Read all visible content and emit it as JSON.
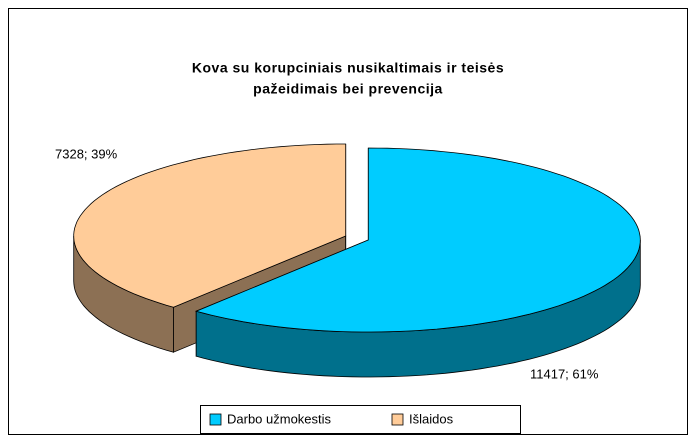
{
  "chart_data": {
    "type": "pie3d",
    "title": [
      "Kova su korupciniais nusikaltimais ir teisės",
      "pažeidimais bei prevencija"
    ],
    "categories": [
      "Darbo užmokestis",
      "Išlaidos"
    ],
    "values": [
      11417,
      7328
    ],
    "value_labels": [
      "11417; 61%",
      "7328; 39%"
    ],
    "colors": [
      "#00ccff",
      "#ffcc99"
    ],
    "legend": "bottom"
  }
}
